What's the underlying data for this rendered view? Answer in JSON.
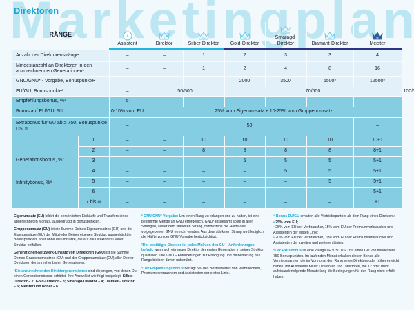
{
  "watermark": "Marketingplan",
  "title": "Direktoren",
  "header": {
    "label": "RÄNGE",
    "ranks": [
      {
        "name": "Assistent",
        "badge": "A",
        "icon": "circle-badge-icon"
      },
      {
        "name": "Direktor",
        "badge": "D",
        "icon": "crown-icon"
      },
      {
        "name": "Silber-Direktor",
        "badge": "SD",
        "icon": "crown-icon"
      },
      {
        "name": "Gold-Direktor",
        "badge": "GD",
        "icon": "crown-icon"
      },
      {
        "name": "Smaragd-Direktor",
        "badge": "SmD",
        "icon": "crown-icon"
      },
      {
        "name": "Diamant-Direktor",
        "badge": "DD",
        "icon": "crown-icon"
      },
      {
        "name": "Meister",
        "badge": "M",
        "icon": "crown-filled-icon"
      }
    ]
  },
  "colors": {
    "accent": "#18a9d6",
    "light_row": "#e2f1f9",
    "dark_row": "#84cde3",
    "bar_cyan": "#22b6de",
    "bar_navy": "#2c3580"
  },
  "rows": {
    "r1": {
      "label": "Anzahl der Direktorenstränge",
      "v": [
        "–",
        "–",
        "1",
        "2",
        "3",
        "3",
        "4"
      ]
    },
    "r2": {
      "label": "Mindestanzahl an Direktoren in den anzurechnenden Generationen¹",
      "v": [
        "–",
        "–",
        "1",
        "2",
        "4",
        "8",
        "16"
      ]
    },
    "r3": {
      "label": "GNU/GNU* - Vorgabe, Bonuspunkte²",
      "v": [
        "–",
        "–",
        "",
        "2000",
        "3500",
        "6500*",
        "12500*"
      ]
    },
    "r4": {
      "label": "EU/GU, Bonuspunkte³",
      "v": [
        "–",
        "50/500",
        "70/500",
        "100/500"
      ]
    },
    "r5": {
      "label": "Empfehlungsbonus, %⁴",
      "v": [
        "5",
        "–",
        "–",
        "–",
        "–",
        "–",
        "–"
      ]
    },
    "r6": {
      "label": "Bonus auf EU/GU, %⁵",
      "v": [
        "0-10% vom EU",
        "25% vom Eigenumsatz + 10-25% vom Gruppenumsatz"
      ]
    },
    "r7": {
      "label": "Extrabonus für GU ab ≥ 750, Bonuspunkte USD⁶",
      "v": [
        "–",
        "50",
        "–"
      ]
    },
    "gen_label": "Generationsbonus, %⁷",
    "inf_label": "Infinitybonus, %⁸",
    "gen": [
      {
        "g": "1",
        "v": [
          "–",
          "–",
          "10",
          "10",
          "10",
          "10",
          "10+1"
        ]
      },
      {
        "g": "2",
        "v": [
          "–",
          "–",
          "8",
          "8",
          "8",
          "8",
          "8+1"
        ]
      },
      {
        "g": "3",
        "v": [
          "–",
          "–",
          "–",
          "5",
          "5",
          "5",
          "5+1"
        ]
      },
      {
        "g": "4",
        "v": [
          "–",
          "–",
          "–",
          "–",
          "5",
          "5",
          "5+1"
        ]
      },
      {
        "g": "5",
        "v": [
          "–",
          "–",
          "–",
          "–",
          "–",
          "5",
          "5+1"
        ]
      },
      {
        "g": "6",
        "v": [
          "–",
          "–",
          "–",
          "–",
          "–",
          "–",
          "5+1"
        ]
      },
      {
        "g": "7 bis ∞",
        "v": [
          "–",
          "–",
          "–",
          "–",
          "–",
          "–",
          "+1"
        ]
      }
    ]
  },
  "footnotes": {
    "eu_t": "Eigenumsatz (EU)",
    "eu": " bildet die persönlichen Einkäufe und Transfers eines abgerechneten Monats, ausgedrückt in Bonuspunkten.",
    "gu_t": "Gruppenumsatz (GU)",
    "gu": " ist die Summe Deines Eigenumsatzes (EU) und der Eigenumsätze (EU) der Mitglieder Deiner eigenen Struktur, ausgedrückt in Bonuspunkten, aber ohne die Umsätze, die auf die Direktoren Deiner Struktur entfallen.",
    "gnu_t": "Generationen-Netzwerk-Umsatz von Direktoren (GNU)",
    "gnu": " ist die Summe Deines Gruppenumsatzes (GU) und der Gruppenumsätze (GU) aller Deiner Direktoren der anrechenbaren Generationen.",
    "f1_t": "¹Die anzurechnenden Direktorgenerationen",
    "f1": " sind diejenigen, von denen Du einen Generationsbonus erhältst. Ihre Anzahl ist wie folgt festgelegt: ",
    "f1_b": "Silber-Direktor – 2; Gold-Direktor – 3; Smaragd-Direktor – 4; Diamant-Direktor – 5; Meister und hoher – 6.",
    "f2_t": "² GNU/GNU* Vorgabe:",
    "f2": " Um einen Rang zu erlangen und zu halten, ist eine bestimmte Menge an GNU erforderlich. GNU*-Insgesamt sollte in allen Strängen, außer dem stärksten Strang, mindestens die Hälfte des vorgegebenen GNU erreicht werden. Aus dem stärksten Strang wird lediglich die Hälfte von der GNU-Vorgabe berücksichtigt.",
    "f3_t": "³Der bestätigte Direktor ist jedes Mal von den GU – Anforderungen befreit,",
    "f3": " wenn sich ein neuer Direktor der ersten Generation in seiner Struktur qualifiziert. Die GNU – Anforderungen zur Erlangung und Beibehaltung des Rangs bleiben davon unberührt.",
    "f4_t": "⁴Der Empfehlungsbonus",
    "f4": " beträgt 5% des Bestellwertes von Verbrauchern, Premiumverbrauchern und Assistenten der ersten Linie.",
    "f5_t": "⁵ Bonus EU/GU",
    "f5": " erhalten alle Vertriebspartner ab dem Rang eines Direktors:",
    "f5_items": [
      "25% vom EU;",
      "25% vom EU der Verbraucher, 15% vom EU der Premiumverbraucher und Assistenten der ersten Linie;",
      "20% vom EU der Verbraucher, 10% vom EU der Premiumverbraucher und Assistenten der zweiten und weiteren Linien."
    ],
    "f6_t": "⁶Der Extrabonus",
    "f6": " ist eine Zulage i.H.v. 50 USD für einen GU von mindestens 750 Bonuspunkten. Im laufenden Monat erhalten diesen Bonus alle Vertriebspartner, die im Vormonat den Rang eines Direktors oder höher erreicht haben, mit Ausnahme neuer Direktoren und Direktoren, die 12 oder mehr aufeinanderfolgende Monate lang die Bedingungen für den Rang nicht erfüllt haben."
  }
}
